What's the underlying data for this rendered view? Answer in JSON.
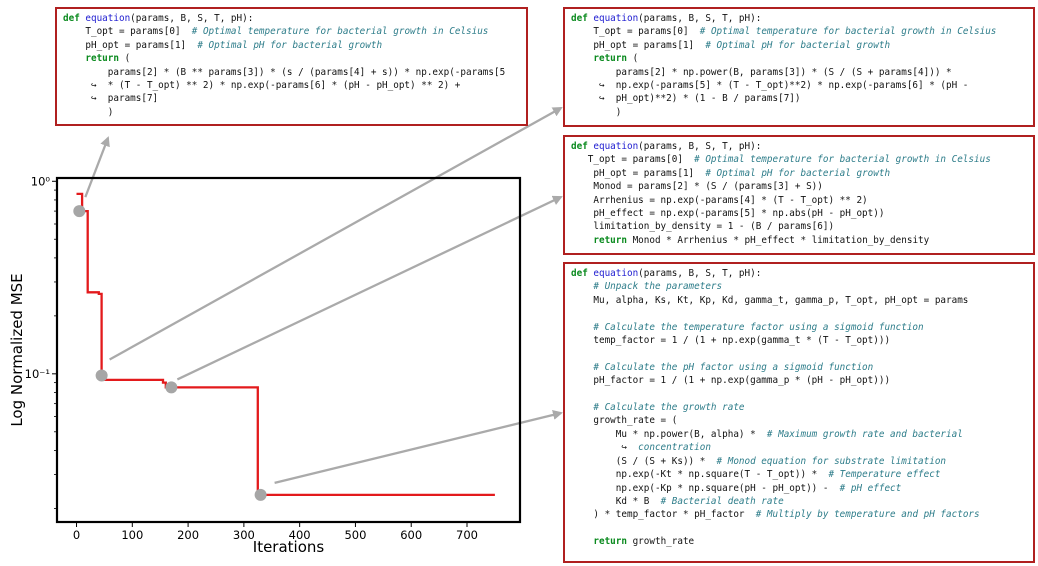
{
  "chart_data": {
    "type": "line",
    "xlabel": "Iterations",
    "ylabel": "Log Normalized MSE",
    "xlim": [
      -35,
      795
    ],
    "ylim": [
      0.017,
      1.04
    ],
    "log_y": true,
    "x_ticks": [
      0,
      100,
      200,
      300,
      400,
      500,
      600,
      700
    ],
    "x_tick_labels": [
      "0",
      "100",
      "200",
      "300",
      "400",
      "500",
      "600",
      "700"
    ],
    "y_ticks": [
      1,
      0.1
    ],
    "y_tick_labels": [
      "10⁰",
      "10⁻¹"
    ],
    "grid": false,
    "line_color": "#e31a1c",
    "step_x": [
      0,
      10,
      10,
      20,
      20,
      40,
      40,
      45,
      45,
      155,
      155,
      160,
      160,
      325,
      325,
      750
    ],
    "step_y": [
      0.86,
      0.86,
      0.7,
      0.7,
      0.265,
      0.265,
      0.26,
      0.26,
      0.093,
      0.093,
      0.09,
      0.09,
      0.085,
      0.085,
      0.0235,
      0.0235
    ],
    "highlight_points": [
      {
        "x": 5,
        "y": 0.7
      },
      {
        "x": 45,
        "y": 0.098
      },
      {
        "x": 170,
        "y": 0.085
      },
      {
        "x": 330,
        "y": 0.0235
      }
    ],
    "marker_color": "#a6a6a6"
  },
  "code_boxes": [
    {
      "name": "equation-box-1",
      "lines": [
        [
          [
            "kw",
            "def "
          ],
          [
            "fn",
            "equation"
          ],
          [
            "",
            "(params, B, S, T, pH):"
          ]
        ],
        [
          [
            "",
            "    T_opt = params[0]  "
          ],
          [
            "cm",
            "# Optimal temperature for bacterial growth in Celsius"
          ]
        ],
        [
          [
            "",
            "    pH_opt = params[1]  "
          ],
          [
            "cm",
            "# Optimal pH for bacterial growth"
          ]
        ],
        [
          [
            "kw",
            "    return "
          ],
          [
            "",
            "("
          ]
        ],
        [
          [
            "",
            "        params[2] * (B ** params[3]) * (s / (params[4] + s)) * np.exp(-params[5"
          ]
        ],
        [
          [
            "",
            "     ↪  * (T - T_opt) ** 2) * np.exp(-params[6] * (pH - pH_opt) ** 2) +"
          ]
        ],
        [
          [
            "",
            "     ↪  params[7]"
          ]
        ],
        [
          [
            "",
            "        )"
          ]
        ]
      ]
    },
    {
      "name": "equation-box-2",
      "lines": [
        [
          [
            "kw",
            "def "
          ],
          [
            "fn",
            "equation"
          ],
          [
            "",
            "(params, B, S, T, pH):"
          ]
        ],
        [
          [
            "",
            "    T_opt = params[0]  "
          ],
          [
            "cm",
            "# Optimal temperature for bacterial growth in Celsius"
          ]
        ],
        [
          [
            "",
            "    pH_opt = params[1]  "
          ],
          [
            "cm",
            "# Optimal pH for bacterial growth"
          ]
        ],
        [
          [
            "kw",
            "    return "
          ],
          [
            "",
            "("
          ]
        ],
        [
          [
            "",
            "        params[2] * np.power(B, params[3]) * (S / (S + params[4])) *"
          ]
        ],
        [
          [
            "",
            "     ↪  np.exp(-params[5] * (T - T_opt)**2) * np.exp(-params[6] * (pH -"
          ]
        ],
        [
          [
            "",
            "     ↪  pH_opt)**2) * (1 - B / params[7])"
          ]
        ],
        [
          [
            "",
            "        )"
          ]
        ]
      ]
    },
    {
      "name": "equation-box-3",
      "lines": [
        [
          [
            "kw",
            "def "
          ],
          [
            "fn",
            "equation"
          ],
          [
            "",
            "(params, B, S, T, pH):"
          ]
        ],
        [
          [
            "",
            "   T_opt = params[0]  "
          ],
          [
            "cm",
            "# Optimal temperature for bacterial growth in Celsius"
          ]
        ],
        [
          [
            "",
            "    pH_opt = params[1]  "
          ],
          [
            "cm",
            "# Optimal pH for bacterial growth"
          ]
        ],
        [
          [
            "",
            "    Monod = params[2] * (S / (params[3] + S))"
          ]
        ],
        [
          [
            "",
            "    Arrhenius = np.exp(-params[4] * (T - T_opt) ** 2)"
          ]
        ],
        [
          [
            "",
            "    pH_effect = np.exp(-params[5] * np.abs(pH - pH_opt))"
          ]
        ],
        [
          [
            "",
            "    limitation_by_density = 1 - (B / params[6])"
          ]
        ],
        [
          [
            "kw",
            "    return "
          ],
          [
            "",
            "Monod * Arrhenius * pH_effect * limitation_by_density"
          ]
        ]
      ]
    },
    {
      "name": "equation-box-4",
      "lines": [
        [
          [
            "kw",
            "def "
          ],
          [
            "fn",
            "equation"
          ],
          [
            "",
            "(params, B, S, T, pH):"
          ]
        ],
        [
          [
            "cm",
            "    # Unpack the parameters"
          ]
        ],
        [
          [
            "",
            "    Mu, alpha, Ks, Kt, Kp, Kd, gamma_t, gamma_p, T_opt, pH_opt = params"
          ]
        ],
        [
          [
            "",
            ""
          ]
        ],
        [
          [
            "cm",
            "    # Calculate the temperature factor using a sigmoid function"
          ]
        ],
        [
          [
            "",
            "    temp_factor = 1 / (1 + np.exp(gamma_t * (T - T_opt)))"
          ]
        ],
        [
          [
            "",
            ""
          ]
        ],
        [
          [
            "cm",
            "    # Calculate the pH factor using a sigmoid function"
          ]
        ],
        [
          [
            "",
            "    pH_factor = 1 / (1 + np.exp(gamma_p * (pH - pH_opt)))"
          ]
        ],
        [
          [
            "",
            ""
          ]
        ],
        [
          [
            "cm",
            "    # Calculate the growth rate"
          ]
        ],
        [
          [
            "",
            "    growth_rate = ("
          ]
        ],
        [
          [
            "",
            "        Mu * np.power(B, alpha) *  "
          ],
          [
            "cm",
            "# Maximum growth rate and bacterial"
          ]
        ],
        [
          [
            "",
            "         ↪  "
          ],
          [
            "cm",
            "concentration"
          ]
        ],
        [
          [
            "",
            "        (S / (S + Ks)) *  "
          ],
          [
            "cm",
            "# Monod equation for substrate limitation"
          ]
        ],
        [
          [
            "",
            "        np.exp(-Kt * np.square(T - T_opt)) *  "
          ],
          [
            "cm",
            "# Temperature effect"
          ]
        ],
        [
          [
            "",
            "        np.exp(-Kp * np.square(pH - pH_opt)) -  "
          ],
          [
            "cm",
            "# pH effect"
          ]
        ],
        [
          [
            "",
            "        Kd * B  "
          ],
          [
            "cm",
            "# Bacterial death rate"
          ]
        ],
        [
          [
            "",
            "    ) * temp_factor * pH_factor  "
          ],
          [
            "cm",
            "# Multiply by temperature and pH factors"
          ]
        ],
        [
          [
            "",
            ""
          ]
        ],
        [
          [
            "kw",
            "    return "
          ],
          [
            "",
            "growth_rate"
          ]
        ]
      ]
    }
  ]
}
